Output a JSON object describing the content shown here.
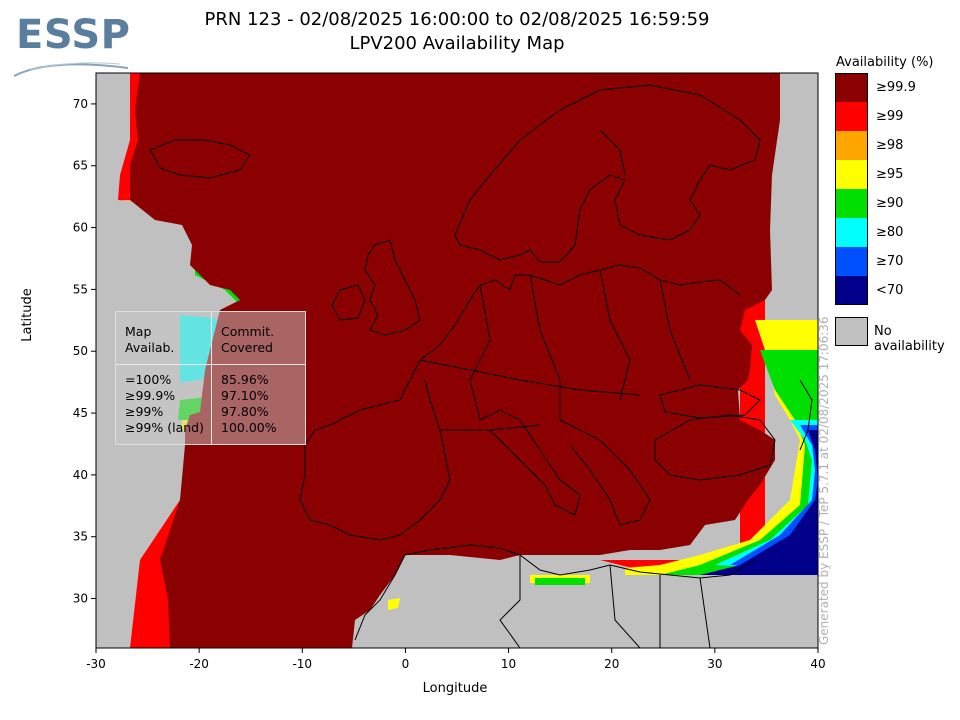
{
  "header": {
    "title_line1": "PRN 123 - 02/08/2025 16:00:00 to 02/08/2025 16:59:59",
    "title_line2": "LPV200 Availability Map",
    "logo_text": "ESSP"
  },
  "axes": {
    "xlabel": "Longitude",
    "ylabel": "Latitude",
    "x_range": [
      -30,
      40
    ],
    "y_range": [
      26,
      72.5
    ],
    "x_ticks": [
      "-30",
      "-20",
      "-10",
      "0",
      "10",
      "20",
      "30",
      "40"
    ],
    "y_ticks": [
      "30",
      "35",
      "40",
      "45",
      "50",
      "55",
      "60",
      "65",
      "70"
    ]
  },
  "legend": {
    "title": "Availability (%)",
    "items": [
      {
        "label": "≥99.9",
        "color": "#8b0000"
      },
      {
        "label": "≥99",
        "color": "#ff0000"
      },
      {
        "label": "≥98",
        "color": "#ffa500"
      },
      {
        "label": "≥95",
        "color": "#ffff00"
      },
      {
        "label": "≥90",
        "color": "#00e000"
      },
      {
        "label": "≥80",
        "color": "#00ffff"
      },
      {
        "label": "≥70",
        "color": "#0050ff"
      },
      {
        "label": "<70",
        "color": "#00008b"
      }
    ],
    "no_availability": {
      "label": "No availability",
      "color": "#c0c0c0"
    }
  },
  "stats": {
    "header_left": [
      "Map",
      "Availab."
    ],
    "header_right": [
      "Commit.",
      "Covered"
    ],
    "rows": [
      {
        "level": "=100%",
        "value": "85.96%"
      },
      {
        "level": "≥99.9%",
        "value": "97.10%"
      },
      {
        "level": "≥99%",
        "value": "97.80%"
      },
      {
        "level": "≥99% (land)",
        "value": "100.00%"
      }
    ]
  },
  "footer": {
    "generated_by": "Generated by ESSP / TeP 5.7.1 at 02/08/2025 17:06:36"
  }
}
